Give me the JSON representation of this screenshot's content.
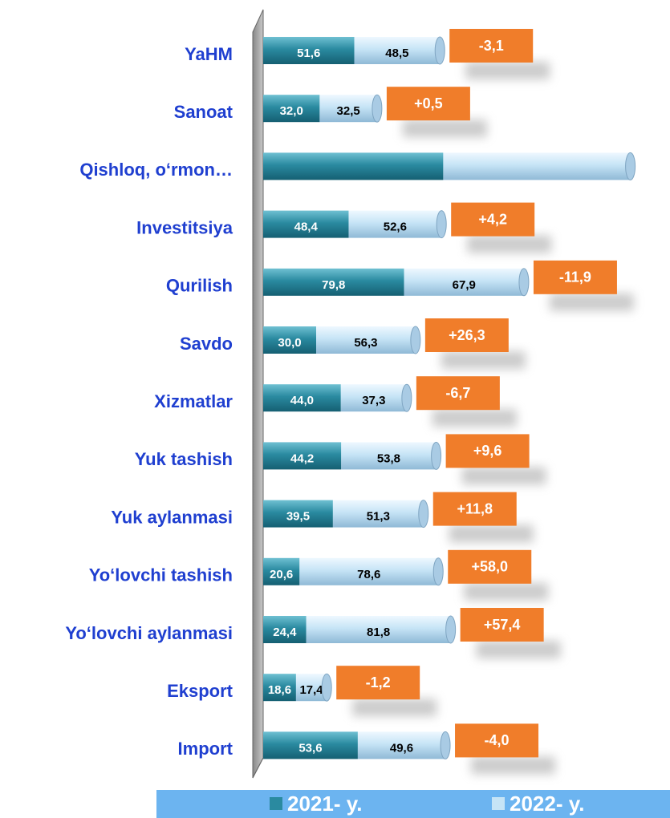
{
  "chart_data": {
    "type": "bar",
    "orientation": "horizontal",
    "stacked": true,
    "categories": [
      "YaHM",
      "Sanoat",
      "Qishloq, o‘rmon…",
      "Investitsiya",
      "Qurilish",
      "Savdo",
      "Xizmatlar",
      "Yuk tashish",
      "Yuk aylanmasi",
      "Yo‘lovchi tashish",
      "Yo‘lovchi aylanmasi",
      "Eksport",
      "Import"
    ],
    "xlim": [
      0,
      230
    ],
    "series": [
      {
        "name": "2021- y.",
        "color": "#2a8aa0",
        "values": [
          51.6,
          32.0,
          102,
          48.4,
          79.8,
          30.0,
          44.0,
          44.2,
          39.5,
          20.6,
          24.4,
          18.6,
          53.6
        ],
        "value_labels": [
          "51,6",
          "32,0",
          null,
          "48,4",
          "79,8",
          "30,0",
          "44,0",
          "44,2",
          "39,5",
          "20,6",
          "24,4",
          "18,6",
          "53,6"
        ]
      },
      {
        "name": "2022- y.",
        "color": "#c6e4f6",
        "values": [
          48.5,
          32.5,
          106,
          52.6,
          67.9,
          56.3,
          37.3,
          53.8,
          51.3,
          78.6,
          81.8,
          17.4,
          49.6
        ],
        "value_labels": [
          "48,5",
          "32,5",
          null,
          "52,6",
          "67,9",
          "56,3",
          "37,3",
          "53,8",
          "51,3",
          "78,6",
          "81,8",
          "17,4",
          "49,6"
        ]
      }
    ],
    "changes": {
      "color": "#f07d2a",
      "values": [
        -3.1,
        0.5,
        null,
        4.2,
        -11.9,
        26.3,
        -6.7,
        9.6,
        11.8,
        58.0,
        57.4,
        -1.2,
        -4.0
      ],
      "value_labels": [
        "-3,1",
        "+0,5",
        null,
        "+4,2",
        "-11,9",
        "+26,3",
        "-6,7",
        "+9,6",
        "+11,8",
        "+58,0",
        "+57,4",
        "-1,2",
        "-4,0"
      ]
    }
  }
}
